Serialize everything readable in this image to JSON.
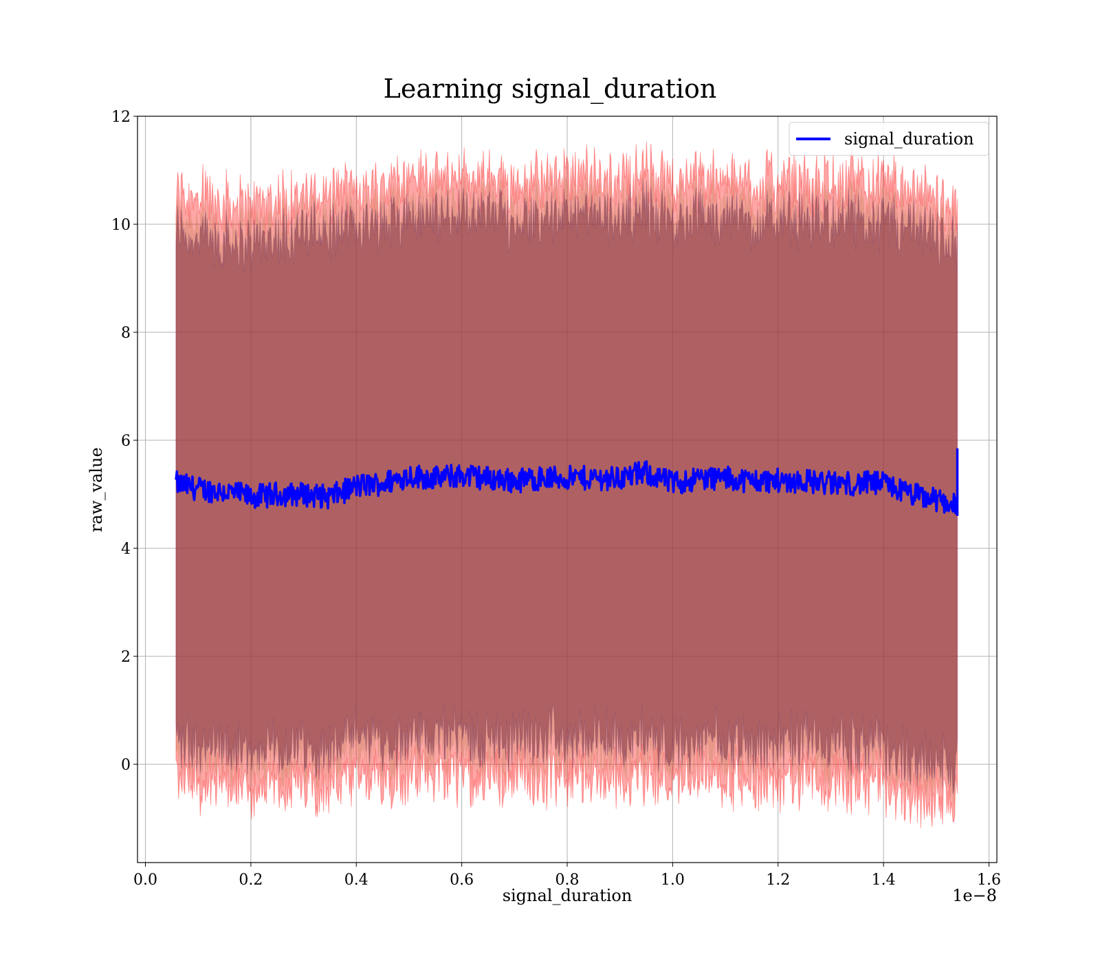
{
  "chart_data": {
    "type": "line",
    "title": "Learning signal_duration",
    "xlabel": "signal_duration",
    "ylabel": "raw_value",
    "x_offset_text": "1e−8",
    "xlim": [
      -0.015,
      1.615
    ],
    "ylim": [
      -1.82,
      12.0
    ],
    "x_ticks": [
      0.0,
      0.2,
      0.4,
      0.6,
      0.8,
      1.0,
      1.2,
      1.4,
      1.6
    ],
    "x_tick_labels": [
      "0.0",
      "0.2",
      "0.4",
      "0.6",
      "0.8",
      "1.0",
      "1.2",
      "1.4",
      "1.6"
    ],
    "y_ticks": [
      0,
      2,
      4,
      6,
      8,
      10,
      12
    ],
    "y_tick_labels": [
      "0",
      "2",
      "4",
      "6",
      "8",
      "10",
      "12"
    ],
    "grid": true,
    "legend_position": "top-right",
    "colors": {
      "line": "#0000ff",
      "band_outer": "#ff0000",
      "band_inner": "#8b3a4a"
    },
    "series": [
      {
        "name": "signal_duration",
        "x": [
          0.058,
          0.1,
          0.15,
          0.2,
          0.25,
          0.3,
          0.35,
          0.4,
          0.45,
          0.5,
          0.55,
          0.6,
          0.65,
          0.7,
          0.75,
          0.8,
          0.85,
          0.9,
          0.95,
          1.0,
          1.05,
          1.1,
          1.15,
          1.2,
          1.25,
          1.3,
          1.35,
          1.4,
          1.45,
          1.5,
          1.54
        ],
        "values": [
          5.2,
          5.1,
          5.05,
          4.95,
          5.0,
          5.0,
          4.95,
          5.15,
          5.2,
          5.35,
          5.3,
          5.35,
          5.3,
          5.25,
          5.3,
          5.3,
          5.3,
          5.3,
          5.4,
          5.2,
          5.3,
          5.3,
          5.25,
          5.25,
          5.25,
          5.2,
          5.2,
          5.2,
          5.0,
          4.9,
          4.8
        ],
        "upper_band": [
          10.2,
          10.1,
          10.0,
          10.0,
          10.1,
          10.2,
          10.2,
          10.3,
          10.4,
          10.5,
          10.5,
          10.5,
          10.5,
          10.4,
          10.5,
          10.5,
          10.5,
          10.5,
          10.6,
          10.4,
          10.5,
          10.5,
          10.4,
          10.4,
          10.4,
          10.4,
          10.4,
          10.4,
          10.2,
          10.1,
          9.9
        ],
        "lower_band": [
          0.1,
          0.0,
          -0.1,
          -0.1,
          -0.05,
          0.0,
          -0.05,
          0.1,
          0.1,
          0.2,
          0.2,
          0.2,
          0.1,
          0.1,
          0.15,
          0.1,
          0.1,
          0.1,
          0.2,
          0.0,
          0.1,
          0.1,
          0.05,
          0.05,
          0.05,
          0.0,
          0.0,
          0.0,
          -0.2,
          -0.3,
          -0.4
        ]
      }
    ]
  }
}
